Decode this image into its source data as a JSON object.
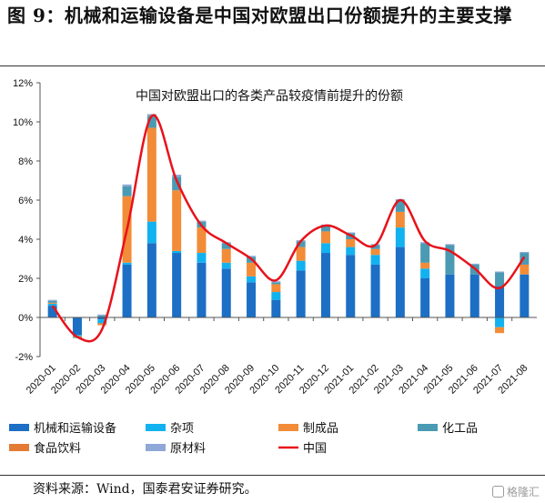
{
  "figure": {
    "title": "图 9：机械和运输设备是中国对欧盟出口份额提升的主要支撑",
    "source": "资料来源：Wind，国泰君安证券研究。",
    "watermark": "格隆汇"
  },
  "chart_data": {
    "type": "bar",
    "stacked": true,
    "title": "中国对欧盟出口的各类产品较疫情前提升的份额",
    "xlabel": "",
    "ylabel": "",
    "ylim": [
      -2,
      12
    ],
    "yticks": [
      -2,
      0,
      2,
      4,
      6,
      8,
      10,
      12
    ],
    "ytick_labels": [
      "-2%",
      "0%",
      "2%",
      "4%",
      "6%",
      "8%",
      "10%",
      "12%"
    ],
    "grid": false,
    "legend_position": "bottom",
    "categories": [
      "2020-01",
      "2020-02",
      "2020-03",
      "2020-04",
      "2020-05",
      "2020-06",
      "2020-07",
      "2020-08",
      "2020-09",
      "2020-10",
      "2020-11",
      "2020-12",
      "2021-01",
      "2021-02",
      "2021-03",
      "2021-04",
      "2021-05",
      "2021-06",
      "2021-07",
      "2021-08"
    ],
    "series": [
      {
        "name": "机械和运输设备",
        "color": "#1c6fc4",
        "kind": "bar",
        "values": [
          0.6,
          -0.9,
          -0.1,
          2.7,
          3.8,
          3.3,
          2.8,
          2.5,
          1.8,
          0.9,
          2.4,
          3.3,
          3.2,
          2.7,
          3.6,
          2.0,
          2.2,
          2.2,
          1.6,
          2.2
        ]
      },
      {
        "name": "杂项",
        "color": "#12b2f0",
        "kind": "bar",
        "values": [
          0.1,
          -0.05,
          -0.2,
          0.1,
          1.1,
          0.1,
          0.5,
          0.3,
          0.3,
          0.4,
          0.5,
          0.5,
          0.4,
          0.5,
          1.0,
          0.5,
          0.0,
          0.0,
          -0.5,
          0.0
        ]
      },
      {
        "name": "制成品",
        "color": "#f28c38",
        "kind": "bar",
        "values": [
          0.05,
          -0.05,
          -0.1,
          3.4,
          4.8,
          3.1,
          1.3,
          0.7,
          0.7,
          0.4,
          0.7,
          0.6,
          0.4,
          0.3,
          0.8,
          0.3,
          0.0,
          0.0,
          -0.3,
          0.5
        ]
      },
      {
        "name": "化工品",
        "color": "#4a9ab3",
        "kind": "bar",
        "values": [
          0.1,
          -0.05,
          0.1,
          0.5,
          0.6,
          0.7,
          0.3,
          0.3,
          0.3,
          0.1,
          0.3,
          0.3,
          0.3,
          0.2,
          0.6,
          1.0,
          1.5,
          0.5,
          0.7,
          0.6
        ]
      },
      {
        "name": "食品饮料",
        "color": "#e47b35",
        "kind": "bar",
        "values": [
          0.0,
          0.0,
          0.0,
          0.0,
          0.0,
          0.0,
          0.0,
          0.0,
          0.0,
          0.0,
          0.0,
          0.0,
          0.0,
          0.0,
          0.0,
          0.0,
          0.0,
          0.0,
          0.0,
          0.0
        ]
      },
      {
        "name": "原材料",
        "color": "#8fa8d8",
        "kind": "bar",
        "values": [
          0.05,
          0.0,
          0.05,
          0.1,
          0.1,
          0.1,
          0.05,
          0.05,
          0.05,
          0.05,
          0.05,
          0.05,
          0.05,
          0.05,
          0.05,
          0.05,
          0.05,
          0.05,
          0.05,
          0.05
        ]
      },
      {
        "name": "中国",
        "color": "#e8121a",
        "kind": "line",
        "values": [
          0.6,
          -1.0,
          -0.6,
          4.5,
          10.3,
          7.0,
          4.7,
          3.8,
          3.0,
          1.9,
          3.9,
          4.7,
          4.2,
          3.7,
          6.0,
          3.9,
          3.4,
          2.5,
          1.5,
          3.1
        ]
      }
    ]
  }
}
